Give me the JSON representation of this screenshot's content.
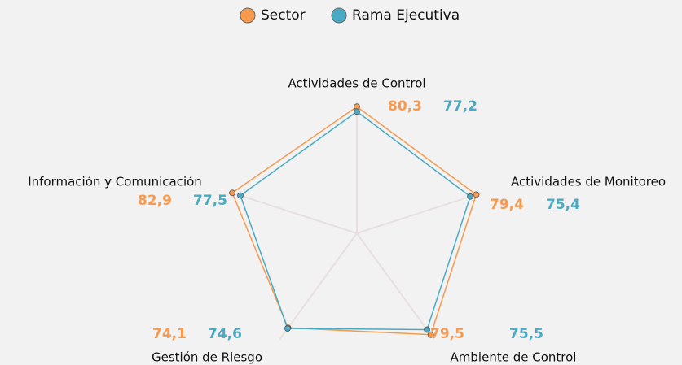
{
  "chart_data": {
    "type": "radar",
    "categories": [
      "Actividades de Control",
      "Actividades de Monitoreo",
      "Ambiente de Control",
      "Gestión de Riesgo",
      "Información y Comunicación"
    ],
    "series": [
      {
        "name": "Sector",
        "color": "#f59a4f",
        "values": [
          80.3,
          79.4,
          79.5,
          74.1,
          82.9
        ],
        "value_labels": [
          "80,3",
          "79,4",
          "79,5",
          "74,1",
          "82,9"
        ]
      },
      {
        "name": "Rama Ejecutiva",
        "color": "#4aaac4",
        "values": [
          77.2,
          75.4,
          75.5,
          74.6,
          77.5
        ],
        "value_labels": [
          "77,2",
          "75,4",
          "75,5",
          "74,6",
          "77,5"
        ]
      }
    ],
    "rlim": [
      0,
      83
    ],
    "legend": "top"
  }
}
